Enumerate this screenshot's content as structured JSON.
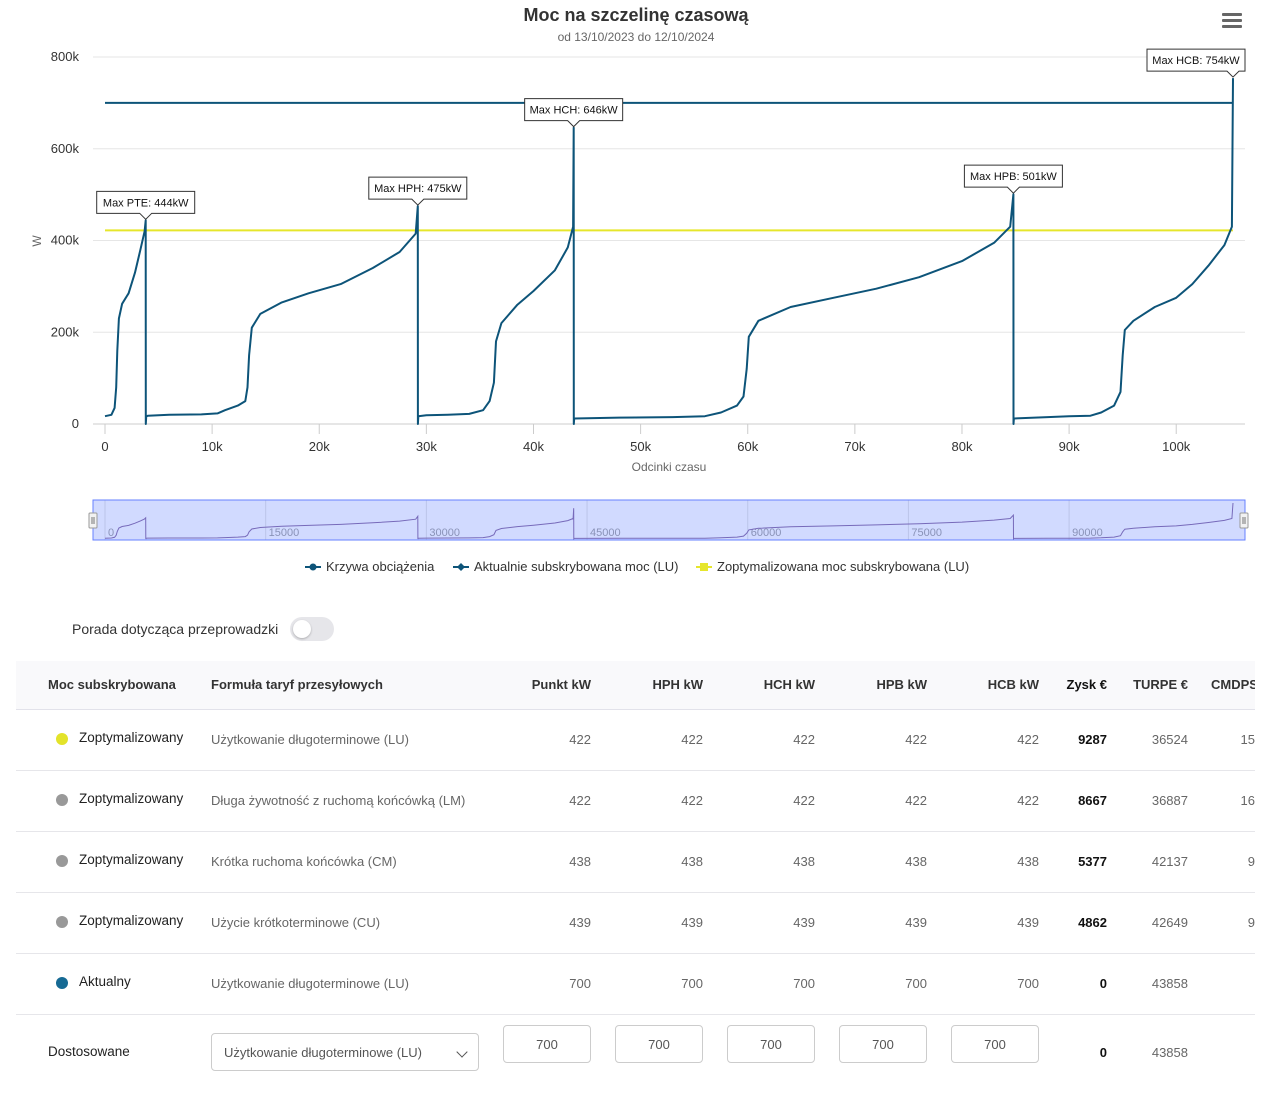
{
  "chart": {
    "title": "Moc na szczelinę czasową",
    "subtitle": "od 13/10/2023 do 12/10/2024",
    "menu_icon": "hamburger-icon"
  },
  "chart_data": {
    "type": "line",
    "xlabel": "Odcinki czasu",
    "ylabel": "W",
    "xlim": [
      -1000,
      106500
    ],
    "ylim": [
      0,
      800000
    ],
    "x_ticks": [
      "0",
      "10k",
      "20k",
      "30k",
      "40k",
      "50k",
      "60k",
      "70k",
      "80k",
      "90k",
      "100k"
    ],
    "y_ticks": [
      "0",
      "200k",
      "400k",
      "600k",
      "800k"
    ],
    "grid": true,
    "legend_position": "bottom-center",
    "series": [
      {
        "name": "Krzywa obciążenia",
        "color": "#0d5479",
        "points": [
          [
            0,
            17000
          ],
          [
            600,
            20000
          ],
          [
            900,
            35000
          ],
          [
            1050,
            80000
          ],
          [
            1150,
            160000
          ],
          [
            1300,
            230000
          ],
          [
            1600,
            262000
          ],
          [
            2200,
            285000
          ],
          [
            2800,
            330000
          ],
          [
            3300,
            380000
          ],
          [
            3700,
            420000
          ],
          [
            3800,
            444000
          ],
          [
            3810,
            0
          ],
          [
            3850,
            16000
          ],
          [
            4000,
            18000
          ],
          [
            6000,
            20000
          ],
          [
            9000,
            21000
          ],
          [
            10500,
            23000
          ],
          [
            11200,
            30000
          ],
          [
            12400,
            40000
          ],
          [
            13100,
            50000
          ],
          [
            13300,
            80000
          ],
          [
            13450,
            150000
          ],
          [
            13700,
            210000
          ],
          [
            14500,
            240000
          ],
          [
            16500,
            265000
          ],
          [
            19000,
            285000
          ],
          [
            22000,
            305000
          ],
          [
            25000,
            340000
          ],
          [
            27500,
            375000
          ],
          [
            29000,
            415000
          ],
          [
            29200,
            475000
          ],
          [
            29210,
            0
          ],
          [
            29250,
            17000
          ],
          [
            30000,
            19000
          ],
          [
            32000,
            20000
          ],
          [
            34000,
            22000
          ],
          [
            35300,
            30000
          ],
          [
            35900,
            50000
          ],
          [
            36300,
            90000
          ],
          [
            36500,
            180000
          ],
          [
            37000,
            220000
          ],
          [
            38500,
            260000
          ],
          [
            40000,
            290000
          ],
          [
            42000,
            335000
          ],
          [
            43200,
            385000
          ],
          [
            43700,
            430000
          ],
          [
            43750,
            646000
          ],
          [
            43760,
            0
          ],
          [
            43800,
            12000
          ],
          [
            48000,
            14000
          ],
          [
            53000,
            15000
          ],
          [
            56000,
            17000
          ],
          [
            57500,
            25000
          ],
          [
            59000,
            40000
          ],
          [
            59600,
            60000
          ],
          [
            59900,
            120000
          ],
          [
            60100,
            190000
          ],
          [
            61000,
            225000
          ],
          [
            64000,
            255000
          ],
          [
            68000,
            275000
          ],
          [
            72000,
            295000
          ],
          [
            76000,
            320000
          ],
          [
            80000,
            355000
          ],
          [
            83000,
            395000
          ],
          [
            84500,
            430000
          ],
          [
            84800,
            501000
          ],
          [
            84810,
            0
          ],
          [
            84850,
            12000
          ],
          [
            88000,
            15000
          ],
          [
            90000,
            17000
          ],
          [
            92000,
            18000
          ],
          [
            93000,
            25000
          ],
          [
            94200,
            40000
          ],
          [
            94800,
            70000
          ],
          [
            95000,
            150000
          ],
          [
            95200,
            205000
          ],
          [
            96000,
            225000
          ],
          [
            98000,
            255000
          ],
          [
            100000,
            275000
          ],
          [
            101500,
            305000
          ],
          [
            103000,
            345000
          ],
          [
            104500,
            390000
          ],
          [
            105200,
            430000
          ],
          [
            105300,
            754000
          ]
        ]
      },
      {
        "name": "Aktualnie subskrybowana moc (LU)",
        "color": "#0d5479",
        "points": [
          [
            0,
            700000
          ],
          [
            105300,
            700000
          ]
        ]
      },
      {
        "name": "Zoptymalizowana moc subskrybowana (LU)",
        "color": "#e6e62c",
        "points": [
          [
            0,
            422000
          ],
          [
            105300,
            422000
          ]
        ]
      }
    ],
    "annotations": [
      {
        "text": "Max PTE: 444kW",
        "x": 3800,
        "y": 444000
      },
      {
        "text": "Max HPH: 475kW",
        "x": 29200,
        "y": 475000
      },
      {
        "text": "Max HCH: 646kW",
        "x": 43750,
        "y": 646000
      },
      {
        "text": "Max HPB: 501kW",
        "x": 84800,
        "y": 501000
      },
      {
        "text": "Max HCB: 754kW",
        "x": 105300,
        "y": 754000
      }
    ],
    "navigator": {
      "labels": [
        "0",
        "15000",
        "30000",
        "45000",
        "60000",
        "75000",
        "90000"
      ],
      "values": [
        0,
        15000,
        30000,
        45000,
        60000,
        75000,
        90000
      ]
    }
  },
  "advice": {
    "label": "Porada dotycząca przeprowadzki",
    "toggle_on": false
  },
  "table": {
    "headers": [
      "Moc subskrybowana",
      "Formuła taryf przesyłowych",
      "Punkt kW",
      "HPH kW",
      "HCH kW",
      "HPB kW",
      "HCB kW",
      "Zysk €",
      "TURPE €",
      "CMDPS"
    ],
    "rows": [
      {
        "label": "Zoptymalizowany",
        "dot": "#e3e32a",
        "formula": "Użytkowanie długoterminowe (LU)",
        "punkt": "422",
        "hph": "422",
        "hch": "422",
        "hpb": "422",
        "hcb": "422",
        "zysk": "9287",
        "turpe": "36524",
        "cmdps": "15"
      },
      {
        "label": "Zoptymalizowany",
        "dot": "#999999",
        "formula": "Długa żywotność z ruchomą końcówką (LM)",
        "punkt": "422",
        "hph": "422",
        "hch": "422",
        "hpb": "422",
        "hcb": "422",
        "zysk": "8667",
        "turpe": "36887",
        "cmdps": "16"
      },
      {
        "label": "Zoptymalizowany",
        "dot": "#999999",
        "formula": "Krótka ruchoma końcówka (CM)",
        "punkt": "438",
        "hph": "438",
        "hch": "438",
        "hpb": "438",
        "hcb": "438",
        "zysk": "5377",
        "turpe": "42137",
        "cmdps": "9"
      },
      {
        "label": "Zoptymalizowany",
        "dot": "#999999",
        "formula": "Użycie krótkoterminowe (CU)",
        "punkt": "439",
        "hph": "439",
        "hch": "439",
        "hpb": "439",
        "hcb": "439",
        "zysk": "4862",
        "turpe": "42649",
        "cmdps": "9"
      },
      {
        "label": "Aktualny",
        "dot": "#166a94",
        "formula": "Użytkowanie długoterminowe (LU)",
        "punkt": "700",
        "hph": "700",
        "hch": "700",
        "hpb": "700",
        "hcb": "700",
        "zysk": "0",
        "turpe": "43858",
        "cmdps": ""
      }
    ],
    "custom": {
      "label": "Dostosowane",
      "select_value": "Użytkowanie długoterminowe (LU)",
      "punkt": "700",
      "hph": "700",
      "hch": "700",
      "hpb": "700",
      "hcb": "700",
      "zysk": "0",
      "turpe": "43858"
    }
  }
}
